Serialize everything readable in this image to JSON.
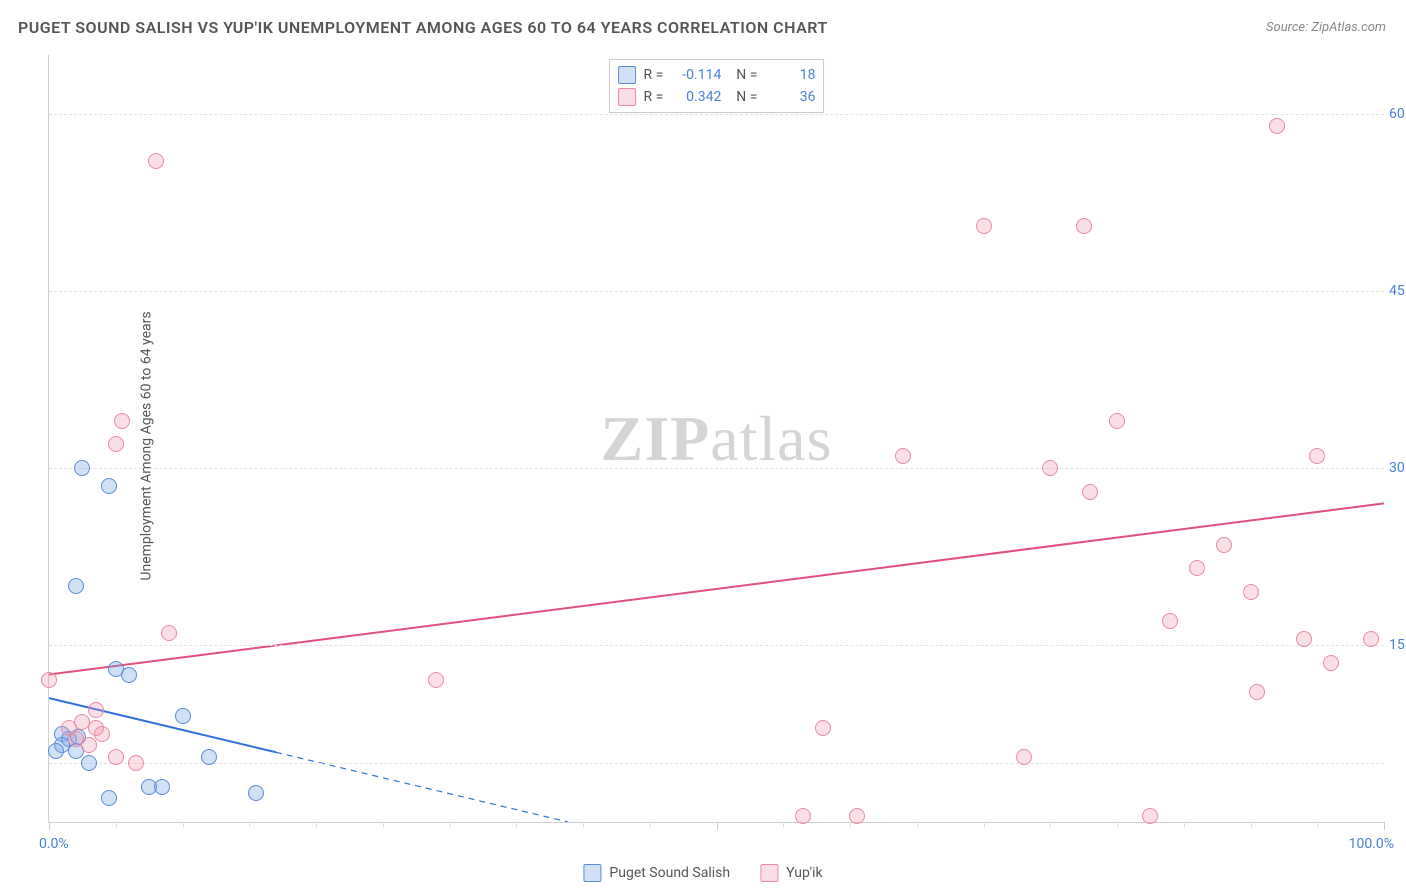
{
  "title": "PUGET SOUND SALISH VS YUP'IK UNEMPLOYMENT AMONG AGES 60 TO 64 YEARS CORRELATION CHART",
  "source": "Source: ZipAtlas.com",
  "ylabel": "Unemployment Among Ages 60 to 64 years",
  "watermark_bold": "ZIP",
  "watermark_light": "atlas",
  "chart": {
    "type": "scatter",
    "xlim": [
      0,
      100
    ],
    "ylim": [
      0,
      65
    ],
    "x_ticks_major": [
      0,
      50,
      100
    ],
    "x_ticks_minor": [
      5,
      10,
      15,
      20,
      25,
      30,
      35,
      40,
      45,
      55,
      60,
      65,
      70,
      75,
      80,
      85,
      90,
      95
    ],
    "x_min_label": "0.0%",
    "x_max_label": "100.0%",
    "y_ticks": [
      {
        "v": 15,
        "label": "15.0%"
      },
      {
        "v": 30,
        "label": "30.0%"
      },
      {
        "v": 45,
        "label": "45.0%"
      },
      {
        "v": 60,
        "label": "60.0%"
      }
    ],
    "grid_levels": [
      5,
      15,
      30,
      45,
      60
    ],
    "background_color": "#ffffff",
    "grid_color": "#e2e2e2",
    "series": [
      {
        "name": "Puget Sound Salish",
        "color_fill": "rgba(120,165,225,0.35)",
        "color_stroke": "#5a8cd6",
        "trend_color": "#2f72d6",
        "trend_width": 2,
        "trend_a": 10.5,
        "trend_b": -0.27,
        "solid_until_x": 17,
        "R": "-0.114",
        "N": "18",
        "points": [
          {
            "x": 2.5,
            "y": 30.0
          },
          {
            "x": 4.5,
            "y": 28.5
          },
          {
            "x": 2.0,
            "y": 20.0
          },
          {
            "x": 5.0,
            "y": 13.0
          },
          {
            "x": 6.0,
            "y": 12.5
          },
          {
            "x": 1.0,
            "y": 7.5
          },
          {
            "x": 1.5,
            "y": 7.0
          },
          {
            "x": 2.2,
            "y": 7.2
          },
          {
            "x": 1.0,
            "y": 6.5
          },
          {
            "x": 0.5,
            "y": 6.0
          },
          {
            "x": 2.0,
            "y": 6.0
          },
          {
            "x": 3.0,
            "y": 5.0
          },
          {
            "x": 4.5,
            "y": 2.0
          },
          {
            "x": 7.5,
            "y": 3.0
          },
          {
            "x": 8.5,
            "y": 3.0
          },
          {
            "x": 12.0,
            "y": 5.5
          },
          {
            "x": 15.5,
            "y": 2.5
          },
          {
            "x": 10.0,
            "y": 9.0
          }
        ]
      },
      {
        "name": "Yup'ik",
        "color_fill": "rgba(240,150,175,0.30)",
        "color_stroke": "#e98ba5",
        "trend_color": "#e14f7b",
        "trend_width": 2,
        "trend_a": 12.5,
        "trend_b": 0.145,
        "solid_until_x": 100,
        "R": "0.342",
        "N": "36",
        "points": [
          {
            "x": 8.0,
            "y": 56.0
          },
          {
            "x": 5.5,
            "y": 34.0
          },
          {
            "x": 5.0,
            "y": 32.0
          },
          {
            "x": 9.0,
            "y": 16.0
          },
          {
            "x": 0.0,
            "y": 12.0
          },
          {
            "x": 1.5,
            "y": 8.0
          },
          {
            "x": 2.5,
            "y": 8.5
          },
          {
            "x": 3.5,
            "y": 8.0
          },
          {
            "x": 2.0,
            "y": 7.0
          },
          {
            "x": 3.0,
            "y": 6.5
          },
          {
            "x": 4.0,
            "y": 7.5
          },
          {
            "x": 5.0,
            "y": 5.5
          },
          {
            "x": 6.5,
            "y": 5.0
          },
          {
            "x": 3.5,
            "y": 9.5
          },
          {
            "x": 29.0,
            "y": 12.0
          },
          {
            "x": 58.0,
            "y": 8.0
          },
          {
            "x": 56.5,
            "y": 0.5
          },
          {
            "x": 60.5,
            "y": 0.5
          },
          {
            "x": 64.0,
            "y": 31.0
          },
          {
            "x": 70.0,
            "y": 50.5
          },
          {
            "x": 73.0,
            "y": 5.5
          },
          {
            "x": 75.0,
            "y": 30.0
          },
          {
            "x": 77.5,
            "y": 50.5
          },
          {
            "x": 78.0,
            "y": 28.0
          },
          {
            "x": 80.0,
            "y": 34.0
          },
          {
            "x": 82.5,
            "y": 0.5
          },
          {
            "x": 84.0,
            "y": 17.0
          },
          {
            "x": 86.0,
            "y": 21.5
          },
          {
            "x": 88.0,
            "y": 23.5
          },
          {
            "x": 90.0,
            "y": 19.5
          },
          {
            "x": 92.0,
            "y": 59.0
          },
          {
            "x": 94.0,
            "y": 15.5
          },
          {
            "x": 95.0,
            "y": 31.0
          },
          {
            "x": 96.0,
            "y": 13.5
          },
          {
            "x": 99.0,
            "y": 15.5
          },
          {
            "x": 90.5,
            "y": 11.0
          }
        ]
      }
    ]
  },
  "legend_bottom": [
    {
      "label": "Puget Sound Salish",
      "cls": "blue"
    },
    {
      "label": "Yup'ik",
      "cls": "pink"
    }
  ]
}
